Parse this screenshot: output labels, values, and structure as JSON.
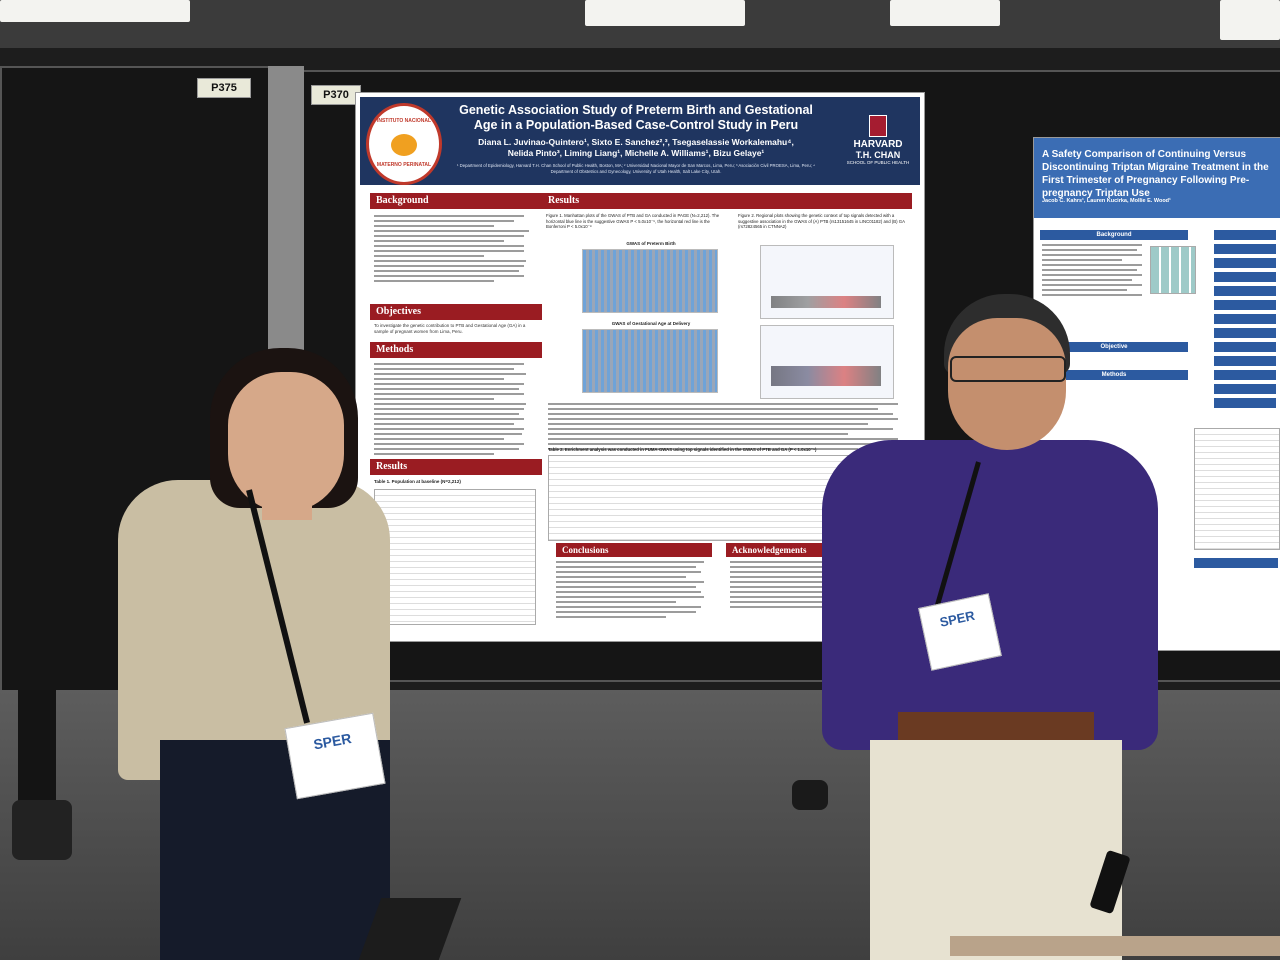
{
  "scene": {
    "description_tags": [
      "conference",
      "poster-session"
    ]
  },
  "tags": {
    "left_board": "P375",
    "center_board": "P370"
  },
  "poster": {
    "title_line1": "Genetic Association Study of Preterm Birth and Gestational",
    "title_line2": "Age in a Population-Based Case-Control Study in Peru",
    "authors_line1": "Diana L. Juvinao-Quintero¹, Sixto E. Sanchez²,³, Tsegaselassie Workalemahu⁴,",
    "authors_line2": "Nelida Pinto³, Liming Liang¹, Michelle A. Williams¹, Bizu Gelaye¹",
    "affiliations": "¹ Department of Epidemiology, Harvard T.H. Chan School of Public Health, Boston, MA; ² Universidad Nacional Mayor de San Marcos, Lima, Peru; ³ Asociación Civil PROESA, Lima, Peru; ⁴ Department of Obstetrics and Gynecology, University of Utah Health, Salt Lake City, Utah.",
    "left_logo_text_top": "INSTITUTO NACIONAL",
    "left_logo_text_bottom": "MATERNO PERINATAL",
    "right_logo_line1": "HARVARD",
    "right_logo_line2": "T.H. CHAN",
    "right_logo_line3": "SCHOOL OF PUBLIC HEALTH",
    "sections": {
      "background": "Background",
      "objectives": "Objectives",
      "methods": "Methods",
      "results_left": "Results",
      "results_main": "Results",
      "conclusions": "Conclusions",
      "acknowledgements": "Acknowledgements"
    },
    "objectives_text": "To investigate the genetic contribution to PTB and Gestational Age (GA) in a sample of pregnant women from Lima, Peru.",
    "table1_caption": "Table 1. Population at baseline (N=2,212)",
    "figure1_caption": "Figure 1. Manhattan plots of the GWAS of PTB and GA conducted in PAGE (N=2,212). The horizontal blue line is the suggestive GWAS P < 5.0x10⁻⁶, the horizontal red line is the Bonferroni P < 5.0x10⁻⁸",
    "figure2_caption": "Figure 2. Regional plots showing the genetic context of top signals detected with a suggestive association in the GWAS of (A) PTB (rs13151645 in LINC01182) and (B) GA (rs72824565 in CTNNA2)",
    "plot1_title": "GWAS of Preterm Birth",
    "plot2_title": "GWAS of Gestational Age at Delivery",
    "table2_caption": "Table 2. Enrichment analysis was conducted in FUMA-GWAS using top signals identified in the GWAS of PTB and GA (P < 1.0x10⁻⁵)"
  },
  "side_poster": {
    "title": "A Safety Comparison of Continuing Versus Discontinuing Triptan Migraine Treatment in the First Trimester of Pregnancy Following Pre-pregnancy Triptan Use",
    "authors": "Jacob C. Kahrs¹, Lauren Kucirka, Mollie E. Wood¹",
    "sections": {
      "background": "Background",
      "objective": "Objective",
      "methods": "Methods"
    }
  },
  "badges": {
    "left": "SPER",
    "right": "SPER"
  },
  "colors": {
    "poster_header": "#1f3560",
    "section_header": "#9a1c22",
    "side_poster_header": "#3b6db4",
    "shirt_purple": "#3a2a7a",
    "cardigan": "#c9bea3"
  }
}
